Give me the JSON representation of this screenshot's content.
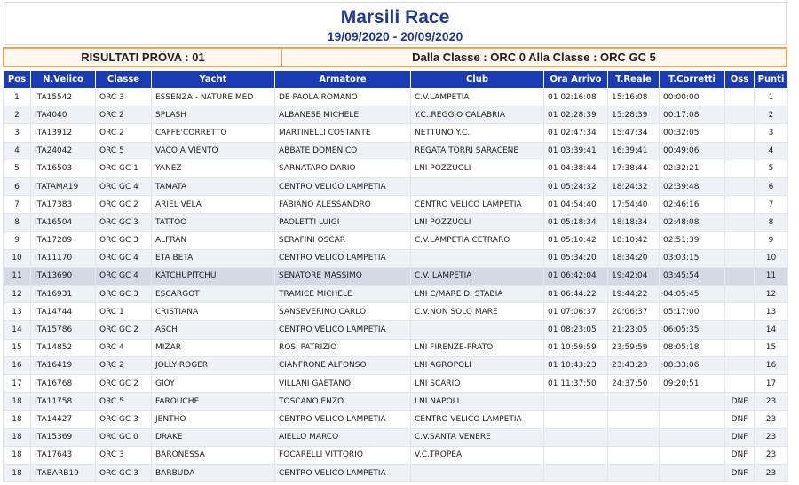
{
  "header": {
    "title": "Marsili Race",
    "dates": "19/09/2020 - 20/09/2020"
  },
  "info": {
    "left": "RISULTATI PROVA : 01",
    "right": "Dalla Classe : ORC 0 Alla Classe : ORC GC 5"
  },
  "columns": [
    "Pos",
    "N.Velico",
    "Classe",
    "Yacht",
    "Armatore",
    "Club",
    "Ora Arrivo",
    "T.Reale",
    "T.Corretti",
    "Oss",
    "Punti"
  ],
  "rows": [
    [
      "1",
      "ITA15542",
      "ORC 3",
      "ESSENZA - NATURE MED",
      "DE PAOLA ROMANO",
      "C.V.LAMPETIA",
      "01 02:16:08",
      "15:16:08",
      "00:00:00",
      "",
      "1"
    ],
    [
      "2",
      "ITA4040",
      "ORC 2",
      "SPLASH",
      "ALBANESE MICHELE",
      "Y.C..REGGIO CALABRIA",
      "01 02:28:39",
      "15:28:39",
      "00:17:08",
      "",
      "2"
    ],
    [
      "3",
      "ITA13912",
      "ORC 2",
      "CAFFE'CORRETTO",
      "MARTINELLI COSTANTE",
      "NETTUNO Y.C.",
      "01 02:47:34",
      "15:47:34",
      "00:32:05",
      "",
      "3"
    ],
    [
      "4",
      "ITA24042",
      "ORC 5",
      "VACO A VIENTO",
      "ABBATE DOMENICO",
      "REGATA TORRI SARACENE",
      "01 03:39:41",
      "16:39:41",
      "00:49:06",
      "",
      "4"
    ],
    [
      "5",
      "ITA16503",
      "ORC GC 1",
      "YANEZ",
      "SARNATARO DARIO",
      "LNI POZZUOLI",
      "01 04:38:44",
      "17:38:44",
      "02:32:21",
      "",
      "5"
    ],
    [
      "6",
      "ITATAMA19",
      "ORC GC 4",
      "TAMATA",
      "CENTRO VELICO LAMPETIA",
      "",
      "01 05:24:32",
      "18:24:32",
      "02:39:48",
      "",
      "6"
    ],
    [
      "7",
      "ITA17383",
      "ORC GC 2",
      "ARIEL VELA",
      "FABIANO ALESSANDRO",
      "CENTRO VELICO LAMPETIA",
      "01 04:54:40",
      "17:54:40",
      "02:46:16",
      "",
      "7"
    ],
    [
      "8",
      "ITA16504",
      "ORC GC 3",
      "TATTOO",
      "PAOLETTI LUIGI",
      "LNI POZZUOLI",
      "01 05:18:34",
      "18:18:34",
      "02:48:08",
      "",
      "8"
    ],
    [
      "9",
      "ITA17289",
      "ORC GC 3",
      "ALFRAN",
      "SERAFINI OSCAR",
      "C.V.LAMPETIA CETRARO",
      "01 05:10:42",
      "18:10:42",
      "02:51:39",
      "",
      "9"
    ],
    [
      "10",
      "ITA11170",
      "ORC GC 4",
      "ETA BETA",
      "CENTRO VELICO LAMPETIA",
      "",
      "01 05:34:20",
      "18:34:20",
      "03:03:15",
      "",
      "10"
    ],
    [
      "11",
      "ITA13690",
      "ORC GC 4",
      "KATCHUPITCHU",
      "SENATORE MASSIMO",
      "C.V. LAMPETIA",
      "01 06:42:04",
      "19:42:04",
      "03:45:54",
      "",
      "11"
    ],
    [
      "12",
      "ITA16931",
      "ORC GC 3",
      "ESCARGOT",
      "TRAMICE MICHELE",
      "LNI C/MARE DI STABIA",
      "01 06:44:22",
      "19:44:22",
      "04:05:45",
      "",
      "12"
    ],
    [
      "13",
      "ITA14744",
      "ORC 1",
      "CRISTIANA",
      "SANSEVERINO CARLO",
      "C.V.NON SOLO MARE",
      "01 07:06:37",
      "20:06:37",
      "05:17:00",
      "",
      "13"
    ],
    [
      "14",
      "ITA15786",
      "ORC GC 2",
      "ASCH",
      "CENTRO VELICO LAMPETIA",
      "",
      "01 08:23:05",
      "21:23:05",
      "06:05:35",
      "",
      "14"
    ],
    [
      "15",
      "ITA14852",
      "ORC 4",
      "MIZAR",
      "ROSI PATRIZIO",
      "LNI FIRENZE-PRATO",
      "01 10:59:59",
      "23:59:59",
      "08:05:18",
      "",
      "15"
    ],
    [
      "16",
      "ITA16419",
      "ORC 2",
      "JOLLY ROGER",
      "CIANFRONE ALFONSO",
      "LNI AGROPOLI",
      "01 10:43:23",
      "23:43:23",
      "08:33:06",
      "",
      "16"
    ],
    [
      "17",
      "ITA16768",
      "ORC GC 2",
      "GIOY",
      "VILLANI GAETANO",
      "LNI SCARIO",
      "01 11:37:50",
      "24:37:50",
      "09:20:51",
      "",
      "17"
    ],
    [
      "18",
      "ITA11758",
      "ORC 5",
      "FAROUCHE",
      "TOSCANO ENZO",
      "LNI NAPOLI",
      "",
      "",
      "",
      "DNF",
      "23"
    ],
    [
      "18",
      "ITA14427",
      "ORC GC 3",
      "JENTHO",
      "CENTRO VELICO LAMPETIA",
      "CENTRO VELICO LAMPETIA",
      "",
      "",
      "",
      "DNF",
      "23"
    ],
    [
      "18",
      "ITA15369",
      "ORC GC 0",
      "DRAKE",
      "AIELLO MARCO",
      "C.V.SANTA VENERE",
      "",
      "",
      "",
      "DNF",
      "23"
    ],
    [
      "18",
      "ITA17643",
      "ORC 3",
      "BARONESSA",
      "FOCARELLI VITTORIO",
      "V.C.TROPEA",
      "",
      "",
      "",
      "DNF",
      "23"
    ],
    [
      "18",
      "ITABARB19",
      "ORC GC 3",
      "BARBUDA",
      "CENTRO VELICO LAMPETIA",
      "",
      "",
      "",
      "",
      "DNF",
      "23"
    ]
  ]
}
